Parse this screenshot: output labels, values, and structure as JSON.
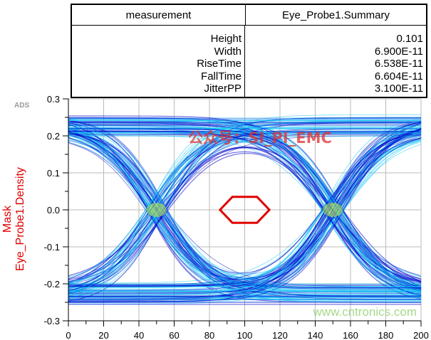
{
  "table": {
    "headers": [
      "measurement",
      "Eye_Probe1.Summary"
    ],
    "rows": [
      {
        "name": "Height",
        "value": "0.101"
      },
      {
        "name": "Width",
        "value": "6.900E-11"
      },
      {
        "name": "RiseTime",
        "value": "6.538E-11"
      },
      {
        "name": "FallTime",
        "value": "6.604E-11"
      },
      {
        "name": "JitterPP",
        "value": "3.100E-11"
      }
    ]
  },
  "logo": "ADS",
  "watermark_top": "公众号：SI_PI_EMC",
  "watermark_bottom": "www.cntronics.com",
  "chart_data": {
    "type": "heatmap",
    "subtype": "eye-diagram density",
    "ylabel_lines": [
      "Mask",
      "Eye_Probe1.Density"
    ],
    "xlim": [
      0,
      200
    ],
    "ylim": [
      -0.3,
      0.3
    ],
    "xticks": [
      0,
      20,
      40,
      60,
      80,
      100,
      120,
      140,
      160,
      180,
      200
    ],
    "yticks": [
      "-0.3",
      "-0.2",
      "-0.1",
      "0.0",
      "0.1",
      "0.2",
      "0.3"
    ],
    "grid": true,
    "eye_crossings_x": [
      50,
      150
    ],
    "levels": [
      -0.25,
      0.25
    ],
    "mask": {
      "color": "#e00000",
      "points": [
        [
          86,
          0
        ],
        [
          93,
          0.035
        ],
        [
          107,
          0.035
        ],
        [
          114,
          0
        ],
        [
          107,
          -0.035
        ],
        [
          93,
          -0.035
        ]
      ]
    },
    "colors": {
      "low": "#0000cc",
      "mid": "#00c0f0",
      "high": "#c8f040"
    }
  }
}
